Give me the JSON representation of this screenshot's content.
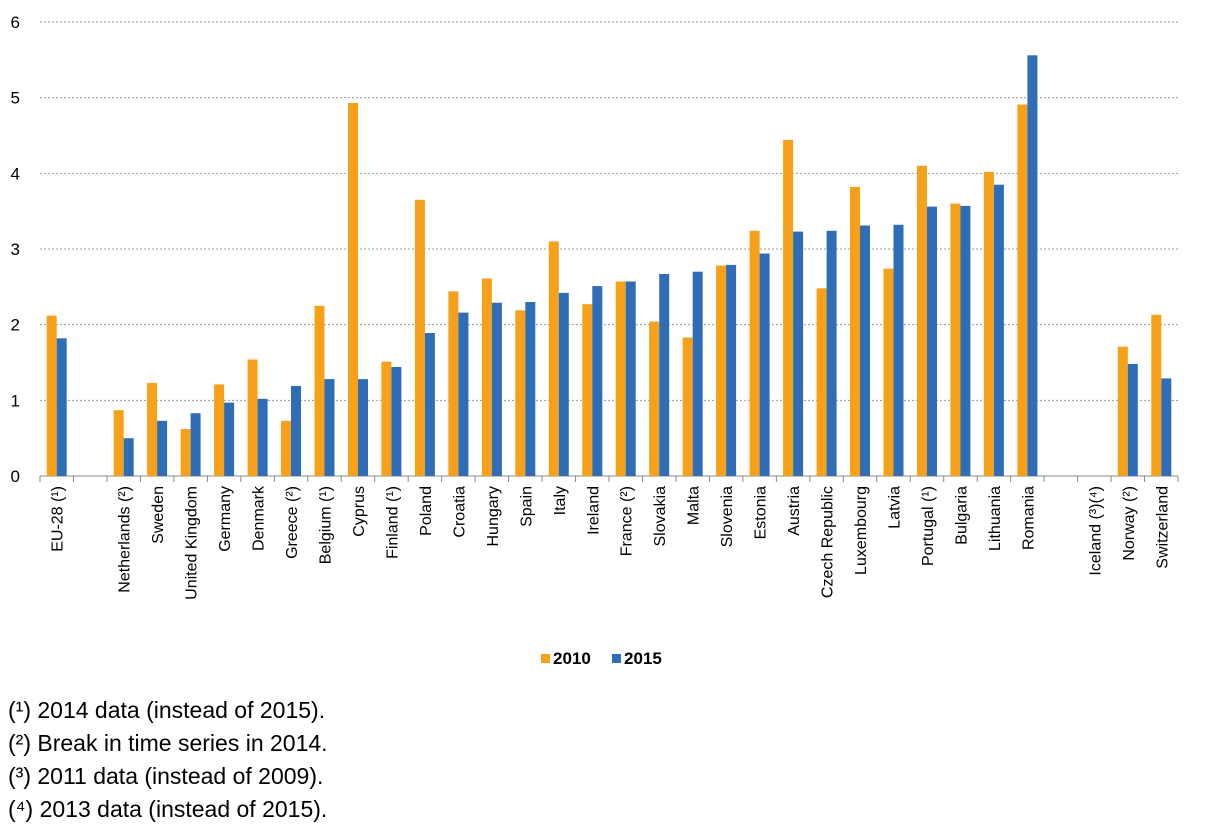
{
  "chart_data": {
    "type": "bar",
    "categories": [
      "EU-28 (¹)",
      "",
      "Netherlands (²)",
      "Sweden",
      "United Kingdom",
      "Germany",
      "Denmark",
      "Greece (²)",
      "Belgium (¹)",
      "Cyprus",
      "Finland (¹)",
      "Poland",
      "Croatia",
      "Hungary",
      "Spain",
      "Italy",
      "Ireland",
      "France (²)",
      "Slovakia",
      "Malta",
      "Slovenia",
      "Estonia",
      "Austria",
      "Czech Republic",
      "Luxembourg",
      "Latvia",
      "Portugal (¹)",
      "Bulgaria",
      "Lithuania",
      "Romania",
      "",
      "Iceland (³)(⁴)",
      "Norway (²)",
      "Switzerland"
    ],
    "series": [
      {
        "name": "2010",
        "color": "#F7A11A",
        "values": [
          2.12,
          null,
          0.87,
          1.23,
          0.62,
          1.21,
          1.54,
          0.73,
          2.25,
          4.93,
          1.51,
          3.65,
          2.44,
          2.61,
          2.19,
          3.1,
          2.27,
          2.57,
          2.04,
          1.83,
          2.78,
          3.24,
          4.44,
          2.48,
          3.82,
          2.74,
          4.1,
          3.6,
          4.02,
          4.91,
          null,
          null,
          1.71,
          2.13
        ]
      },
      {
        "name": "2015",
        "color": "#2F6EB6",
        "values": [
          1.82,
          null,
          0.5,
          0.73,
          0.83,
          0.97,
          1.02,
          1.19,
          1.28,
          1.28,
          1.44,
          1.89,
          2.16,
          2.29,
          2.3,
          2.42,
          2.51,
          2.57,
          2.67,
          2.7,
          2.79,
          2.94,
          3.23,
          3.24,
          3.31,
          3.32,
          3.56,
          3.57,
          3.85,
          5.56,
          null,
          null,
          1.48,
          1.29
        ]
      }
    ],
    "ylim": [
      0,
      6
    ],
    "yticks": [
      "0",
      "1",
      "2",
      "3",
      "4",
      "5",
      "6"
    ],
    "grid": "horizontal-dashed",
    "legend": "bottom-center"
  },
  "notes": [
    "(¹) 2014 data (instead of 2015).",
    "(²) Break in time series in 2014.",
    "(³) 2011 data (instead of 2009).",
    "(⁴) 2013 data (instead of 2015)."
  ]
}
